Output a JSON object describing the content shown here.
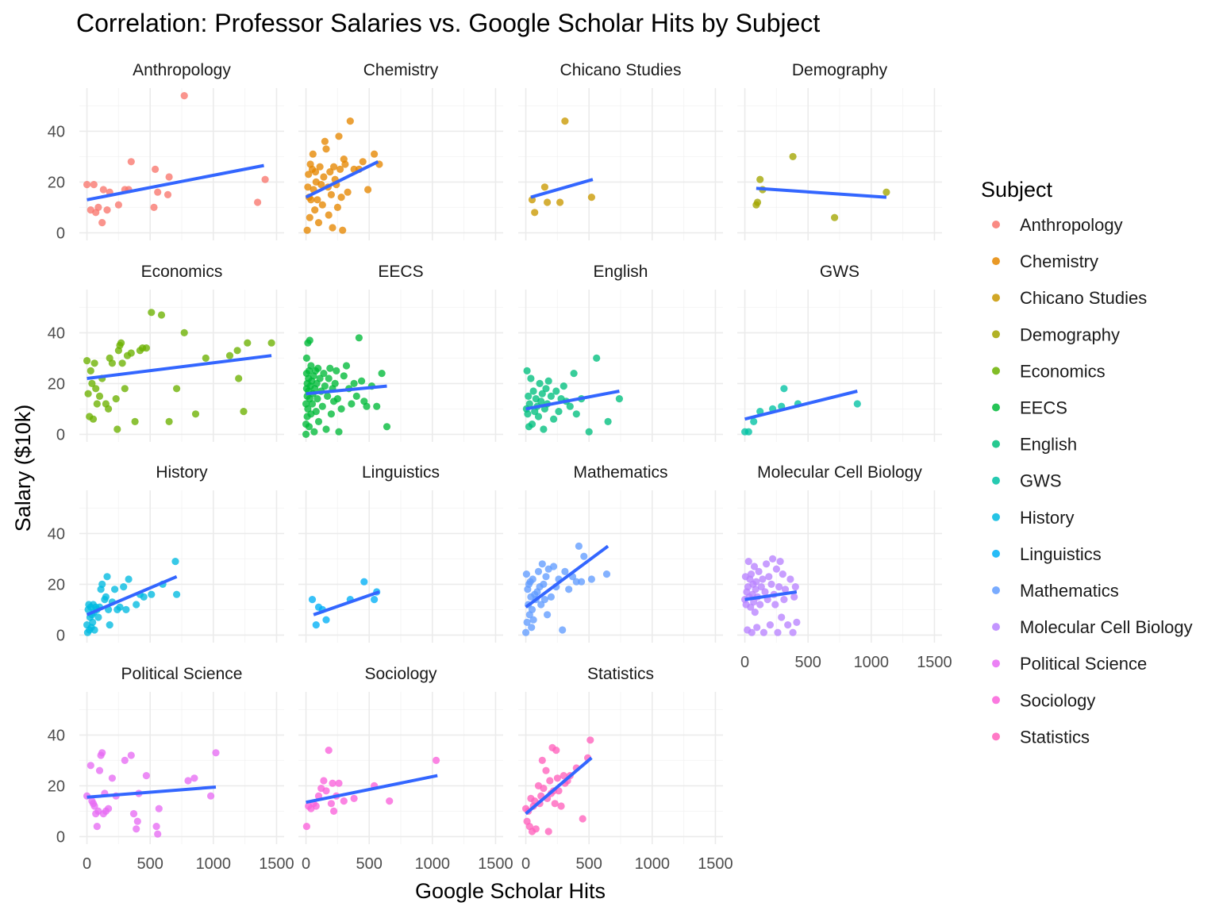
{
  "chart_data": {
    "type": "scatter",
    "title": "Correlation: Professor Salaries vs. Google Scholar Hits by Subject",
    "xlabel": "Google Scholar Hits",
    "ylabel": "Salary ($10k)",
    "xlim": [
      -60,
      1560
    ],
    "ylim": [
      -3,
      57
    ],
    "x_ticks": [
      0,
      500,
      1000,
      1500
    ],
    "y_ticks": [
      0,
      20,
      40
    ],
    "facet_columns": 4,
    "trend_color": "#3366ff",
    "legend": {
      "title": "Subject",
      "position": "right"
    },
    "panels": [
      {
        "name": "Anthropology",
        "color": "#F8766D",
        "x": [
          0,
          30,
          55,
          70,
          90,
          120,
          130,
          160,
          180,
          250,
          300,
          330,
          350,
          530,
          540,
          560,
          640,
          650,
          770,
          1350,
          1410
        ],
        "y": [
          19,
          9,
          19,
          8,
          10,
          4,
          17,
          9,
          16,
          11,
          17,
          17,
          28,
          10,
          25,
          16,
          15,
          22,
          54,
          12,
          21
        ],
        "trend": [
          [
            0,
            13
          ],
          [
            1400,
            26.5
          ]
        ]
      },
      {
        "name": "Chemistry",
        "color": "#E58700",
        "x": [
          10,
          15,
          20,
          25,
          30,
          35,
          40,
          50,
          55,
          60,
          70,
          75,
          80,
          90,
          100,
          110,
          120,
          130,
          140,
          150,
          160,
          175,
          180,
          190,
          200,
          210,
          220,
          230,
          240,
          250,
          260,
          270,
          280,
          290,
          300,
          310,
          330,
          350,
          380,
          420,
          450,
          490,
          540,
          580
        ],
        "y": [
          1,
          18,
          23,
          14,
          6,
          27,
          13,
          25,
          31,
          17,
          9,
          24,
          20,
          13,
          4,
          26,
          19,
          11,
          22,
          36,
          33,
          18,
          7,
          24,
          15,
          2,
          26,
          21,
          19,
          10,
          38,
          25,
          14,
          1,
          29,
          27,
          16,
          44,
          25,
          25,
          28,
          17,
          31,
          27
        ],
        "trend": [
          [
            0,
            14
          ],
          [
            570,
            28
          ]
        ]
      },
      {
        "name": "Chicano Studies",
        "color": "#C99800",
        "x": [
          50,
          70,
          150,
          170,
          270,
          310,
          520
        ],
        "y": [
          13,
          8,
          18,
          12,
          12,
          44,
          14
        ],
        "trend": [
          [
            40,
            14
          ],
          [
            530,
            21
          ]
        ]
      },
      {
        "name": "Demography",
        "color": "#A3A500",
        "x": [
          90,
          100,
          120,
          140,
          380,
          710,
          1120
        ],
        "y": [
          11,
          12,
          21,
          17,
          30,
          6,
          16
        ],
        "trend": [
          [
            90,
            17.5
          ],
          [
            1120,
            14
          ]
        ]
      },
      {
        "name": "Economics",
        "color": "#6BB100",
        "x": [
          0,
          10,
          20,
          30,
          40,
          50,
          60,
          70,
          80,
          100,
          120,
          150,
          170,
          180,
          200,
          230,
          240,
          250,
          260,
          270,
          280,
          300,
          320,
          350,
          380,
          420,
          440,
          470,
          510,
          590,
          650,
          710,
          770,
          860,
          940,
          1130,
          1190,
          1200,
          1240,
          1270,
          1460
        ],
        "y": [
          29,
          16,
          7,
          25,
          20,
          6,
          28,
          18,
          12,
          15,
          22,
          12,
          10,
          30,
          28,
          14,
          2,
          33,
          35,
          36,
          28,
          18,
          31,
          32,
          5,
          33,
          34,
          34,
          48,
          47,
          5,
          18,
          40,
          8,
          30,
          31,
          33,
          22,
          9,
          36,
          36
        ],
        "trend": [
          [
            0,
            22
          ],
          [
            1460,
            31
          ]
        ]
      },
      {
        "name": "EECS",
        "color": "#00BA38",
        "x": [
          0,
          0,
          0,
          5,
          5,
          5,
          10,
          10,
          10,
          15,
          15,
          20,
          20,
          25,
          25,
          30,
          30,
          35,
          40,
          40,
          45,
          50,
          55,
          60,
          65,
          70,
          75,
          80,
          85,
          90,
          95,
          100,
          110,
          120,
          130,
          140,
          150,
          160,
          170,
          180,
          190,
          200,
          210,
          220,
          230,
          240,
          250,
          260,
          280,
          300,
          320,
          340,
          360,
          380,
          400,
          420,
          440,
          460,
          480,
          520,
          560,
          600,
          640
        ],
        "y": [
          0,
          4,
          12,
          18,
          24,
          30,
          7,
          15,
          20,
          36,
          10,
          17,
          22,
          25,
          3,
          14,
          37,
          19,
          8,
          27,
          21,
          12,
          16,
          23,
          1,
          18,
          25,
          9,
          20,
          14,
          26,
          5,
          22,
          17,
          11,
          24,
          19,
          2,
          15,
          22,
          26,
          8,
          18,
          13,
          20,
          25,
          14,
          1,
          10,
          23,
          27,
          18,
          12,
          20,
          15,
          38,
          21,
          13,
          11,
          19,
          11,
          24,
          3
        ],
        "trend": [
          [
            0,
            16
          ],
          [
            640,
            19
          ]
        ]
      },
      {
        "name": "English",
        "color": "#00BF7D",
        "x": [
          5,
          10,
          15,
          20,
          25,
          30,
          40,
          50,
          60,
          70,
          80,
          90,
          100,
          110,
          120,
          130,
          140,
          150,
          160,
          170,
          180,
          200,
          220,
          240,
          260,
          280,
          300,
          320,
          350,
          380,
          400,
          440,
          500,
          560,
          650,
          740
        ],
        "y": [
          10,
          25,
          8,
          15,
          3,
          12,
          22,
          4,
          17,
          9,
          14,
          11,
          7,
          20,
          13,
          16,
          2,
          10,
          18,
          12,
          21,
          15,
          6,
          17,
          9,
          14,
          19,
          13,
          11,
          24,
          8,
          14,
          1,
          30,
          5,
          14
        ],
        "trend": [
          [
            0,
            10
          ],
          [
            740,
            17
          ]
        ]
      },
      {
        "name": "GWS",
        "color": "#00C1A3",
        "x": [
          0,
          30,
          70,
          120,
          220,
          290,
          310,
          420,
          890
        ],
        "y": [
          1,
          1,
          5,
          9,
          10,
          11,
          18,
          12,
          12
        ],
        "trend": [
          [
            0,
            6
          ],
          [
            890,
            17
          ]
        ]
      },
      {
        "name": "History",
        "color": "#00BAE0",
        "x": [
          0,
          5,
          10,
          15,
          20,
          25,
          30,
          35,
          40,
          45,
          50,
          55,
          60,
          70,
          80,
          90,
          100,
          110,
          120,
          140,
          150,
          160,
          170,
          180,
          200,
          220,
          240,
          260,
          290,
          310,
          330,
          390,
          420,
          450,
          510,
          600,
          700,
          710
        ],
        "y": [
          4,
          1,
          10,
          12,
          2,
          7,
          11,
          3,
          8,
          5,
          12,
          9,
          2,
          11,
          10,
          7,
          11,
          18,
          20,
          14,
          15,
          23,
          10,
          4,
          13,
          18,
          10,
          11,
          19,
          10,
          22,
          12,
          16,
          15,
          16,
          20,
          29,
          16
        ],
        "trend": [
          [
            0,
            8
          ],
          [
            710,
            23
          ]
        ]
      },
      {
        "name": "Linguistics",
        "color": "#00B0F6",
        "x": [
          50,
          80,
          100,
          130,
          160,
          350,
          460,
          540,
          560
        ],
        "y": [
          14,
          4,
          11,
          10,
          6,
          14,
          21,
          14,
          17
        ],
        "trend": [
          [
            60,
            8
          ],
          [
            580,
            17
          ]
        ]
      },
      {
        "name": "Mathematics",
        "color": "#619CFF",
        "x": [
          0,
          5,
          10,
          15,
          20,
          25,
          30,
          35,
          40,
          45,
          50,
          55,
          60,
          70,
          80,
          90,
          100,
          110,
          120,
          130,
          140,
          150,
          160,
          170,
          180,
          200,
          220,
          240,
          260,
          290,
          310,
          340,
          370,
          400,
          420,
          440,
          460,
          520,
          640
        ],
        "y": [
          1,
          24,
          5,
          18,
          12,
          20,
          8,
          21,
          15,
          3,
          10,
          22,
          6,
          16,
          14,
          17,
          25,
          19,
          12,
          28,
          20,
          14,
          23,
          8,
          26,
          15,
          27,
          19,
          22,
          2,
          25,
          18,
          23,
          21,
          35,
          21,
          31,
          22,
          24
        ],
        "trend": [
          [
            0,
            11
          ],
          [
            650,
            35
          ]
        ]
      },
      {
        "name": "Molecular Cell Biology",
        "color": "#B983FF",
        "x": [
          0,
          5,
          10,
          15,
          20,
          25,
          30,
          35,
          40,
          45,
          50,
          55,
          60,
          65,
          70,
          75,
          80,
          85,
          90,
          95,
          100,
          110,
          120,
          130,
          140,
          150,
          160,
          170,
          180,
          190,
          200,
          210,
          220,
          230,
          240,
          250,
          260,
          270,
          280,
          290,
          300,
          310,
          320,
          340,
          360,
          380,
          390,
          400,
          410
        ],
        "y": [
          14,
          23,
          12,
          17,
          2,
          19,
          29,
          15,
          22,
          11,
          24,
          1,
          16,
          20,
          13,
          27,
          9,
          18,
          21,
          3,
          15,
          25,
          12,
          19,
          22,
          1,
          17,
          28,
          14,
          23,
          4,
          20,
          30,
          16,
          12,
          26,
          1,
          19,
          29,
          7,
          24,
          14,
          18,
          4,
          22,
          1,
          15,
          19,
          5
        ],
        "trend": [
          [
            0,
            14
          ],
          [
            410,
            17
          ]
        ]
      },
      {
        "name": "Political Science",
        "color": "#E76BF3",
        "x": [
          0,
          30,
          40,
          50,
          60,
          70,
          80,
          90,
          100,
          110,
          120,
          130,
          140,
          150,
          170,
          200,
          230,
          300,
          350,
          370,
          390,
          400,
          410,
          470,
          550,
          560,
          570,
          800,
          850,
          980,
          1020
        ],
        "y": [
          16,
          28,
          14,
          13,
          12,
          9,
          4,
          10,
          26,
          32,
          33,
          9,
          17,
          10,
          11,
          23,
          16,
          30,
          32,
          9,
          3,
          6,
          17,
          24,
          4,
          1,
          11,
          22,
          23,
          16,
          33
        ],
        "trend": [
          [
            0,
            15.5
          ],
          [
            1020,
            19.5
          ]
        ]
      },
      {
        "name": "Sociology",
        "color": "#FA62DB",
        "x": [
          5,
          20,
          40,
          60,
          80,
          100,
          120,
          140,
          160,
          180,
          200,
          210,
          220,
          240,
          260,
          300,
          380,
          540,
          660,
          1030
        ],
        "y": [
          4,
          12,
          11,
          13,
          12,
          16,
          19,
          22,
          18,
          34,
          13,
          21,
          10,
          16,
          21,
          14,
          15,
          20,
          14,
          30
        ],
        "trend": [
          [
            0,
            13.5
          ],
          [
            1040,
            24
          ]
        ]
      },
      {
        "name": "Statistics",
        "color": "#FF62BC",
        "x": [
          0,
          10,
          20,
          30,
          40,
          50,
          60,
          70,
          80,
          100,
          110,
          120,
          130,
          140,
          160,
          170,
          180,
          190,
          200,
          210,
          220,
          230,
          240,
          250,
          260,
          280,
          300,
          310,
          330,
          350,
          400,
          450,
          490,
          510
        ],
        "y": [
          11,
          6,
          10,
          4,
          15,
          2,
          12,
          14,
          3,
          20,
          13,
          16,
          30,
          19,
          26,
          15,
          2,
          22,
          17,
          35,
          18,
          13,
          34,
          23,
          18,
          12,
          24,
          21,
          22,
          24,
          27,
          7,
          31,
          38
        ],
        "trend": [
          [
            0,
            9
          ],
          [
            520,
            31
          ]
        ]
      }
    ]
  }
}
